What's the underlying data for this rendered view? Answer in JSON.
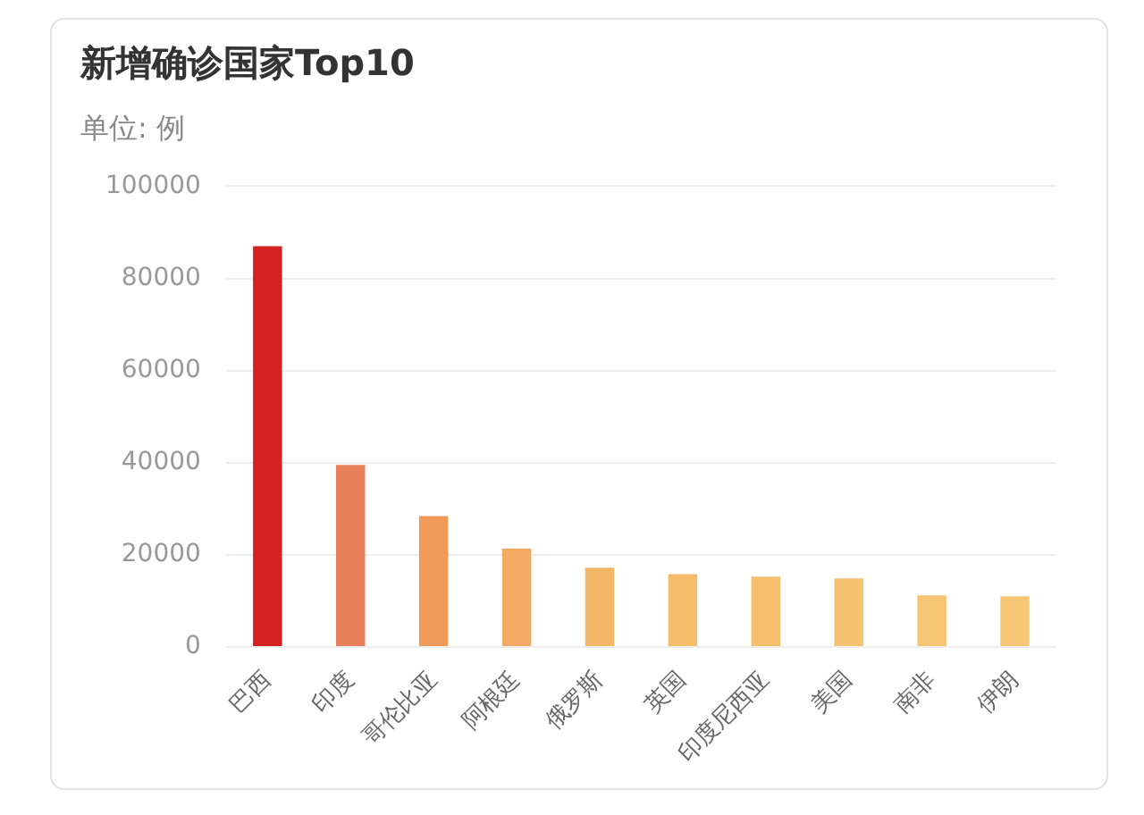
{
  "chart_data": {
    "type": "bar",
    "title": "新增确诊国家Top10",
    "subtitle": "单位: 例",
    "categories": [
      "巴西",
      "印度",
      "哥伦比亚",
      "阿根廷",
      "俄罗斯",
      "英国",
      "印度尼西亚",
      "美国",
      "南非",
      "伊朗"
    ],
    "values": [
      87000,
      39500,
      28400,
      21400,
      17200,
      15800,
      15300,
      14900,
      11200,
      11000
    ],
    "colors": [
      "#d42222",
      "#e8805a",
      "#f09a5a",
      "#f2aa62",
      "#f4b868",
      "#f5bc6c",
      "#f5bf6e",
      "#f6c170",
      "#f7c674",
      "#f7c776"
    ],
    "ylim": [
      0,
      100000
    ],
    "yticks": [
      0,
      20000,
      40000,
      60000,
      80000,
      100000
    ],
    "grid": "y"
  }
}
